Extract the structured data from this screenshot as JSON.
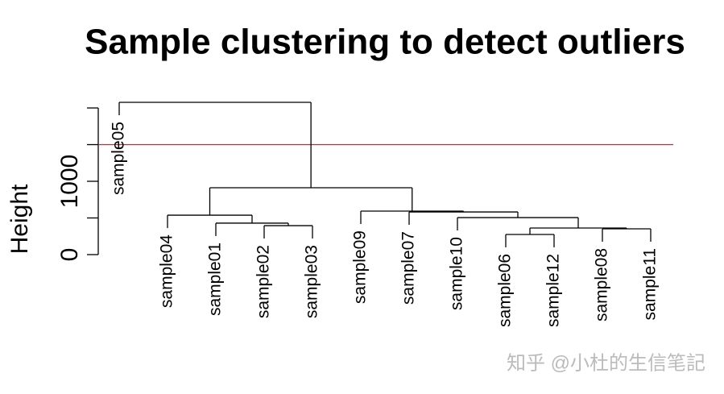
{
  "chart_data": {
    "type": "dendrogram",
    "title": "Sample clustering to detect outliers",
    "ylabel": "Height",
    "ylim": [
      0,
      2000
    ],
    "yticks": [
      0,
      1000
    ],
    "minor_yticks": [
      500,
      1500,
      2000
    ],
    "cut_height": 1500,
    "cut_color": "#e41a1c",
    "color": "#000000",
    "tree": {
      "height": 2077,
      "children": [
        {
          "label": "sample05"
        },
        {
          "height": 912,
          "children": [
            {
              "height": 538,
              "children": [
                {
                  "label": "sample04"
                },
                {
                  "height": 429,
                  "children": [
                    {
                      "label": "sample01"
                    },
                    {
                      "height": 395,
                      "children": [
                        {
                          "label": "sample02"
                        },
                        {
                          "label": "sample03"
                        }
                      ]
                    }
                  ]
                }
              ]
            },
            {
              "height": 593,
              "children": [
                {
                  "label": "sample09"
                },
                {
                  "height": 582,
                  "children": [
                    {
                      "label": "sample07"
                    },
                    {
                      "height": 505,
                      "children": [
                        {
                          "label": "sample10"
                        },
                        {
                          "height": 363,
                          "children": [
                            {
                              "height": 275,
                              "children": [
                                {
                                  "label": "sample06"
                                },
                                {
                                  "label": "sample12"
                                }
                              ]
                            },
                            {
                              "height": 352,
                              "children": [
                                {
                                  "label": "sample08"
                                },
                                {
                                  "label": "sample11"
                                }
                              ]
                            }
                          ]
                        }
                      ]
                    }
                  ]
                }
              ]
            }
          ]
        }
      ]
    }
  },
  "watermark": "知乎 @小杜的生信笔記"
}
